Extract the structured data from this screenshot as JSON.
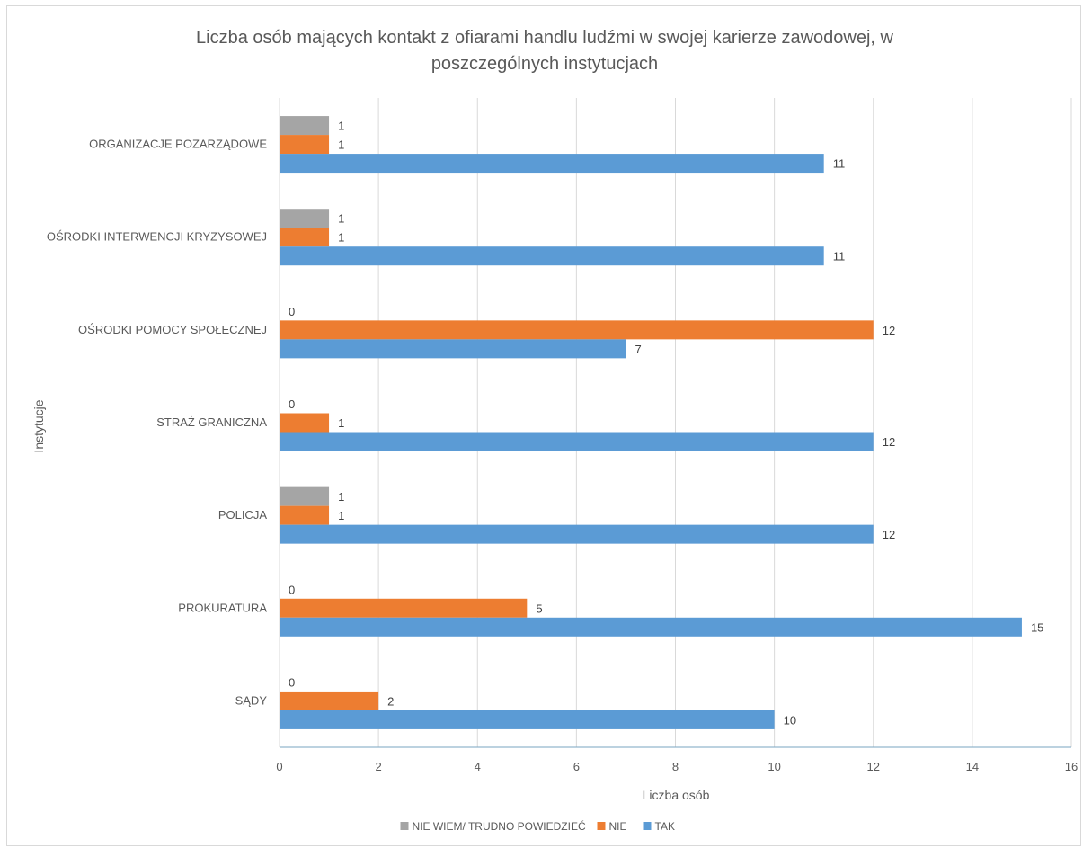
{
  "chart_data": {
    "type": "bar",
    "orientation": "horizontal",
    "title": "Liczba osób mających kontakt z ofiarami handlu ludźmi w swojej karierze zawodowej, w poszczególnych instytucjach",
    "title_lines": [
      "Liczba osób mających kontakt z ofiarami handlu ludźmi w swojej karierze zawodowej, w",
      "poszczególnych  instytucjach"
    ],
    "xlabel": "Liczba osób",
    "ylabel": "Instytucje",
    "xlim": [
      0,
      16
    ],
    "xticks": [
      0,
      2,
      4,
      6,
      8,
      10,
      12,
      14,
      16
    ],
    "grid": "vertical",
    "legend": "bottom",
    "categories": [
      "ORGANIZACJE POZARZĄDOWE",
      "OŚRODKI INTERWENCJI KRYZYSOWEJ",
      "OŚRODKI POMOCY SPOŁECZNEJ",
      "STRAŻ GRANICZNA",
      "POLICJA",
      "PROKURATURA",
      "SĄDY"
    ],
    "series": [
      {
        "name": "NIE WIEM/ TRUDNO POWIEDZIEĆ",
        "color": "#a5a5a5",
        "values": [
          1,
          1,
          0,
          0,
          1,
          0,
          0
        ]
      },
      {
        "name": "NIE",
        "color": "#ed7d31",
        "values": [
          1,
          1,
          12,
          1,
          1,
          5,
          2
        ]
      },
      {
        "name": "TAK",
        "color": "#5b9bd5",
        "values": [
          11,
          11,
          7,
          12,
          12,
          15,
          10
        ]
      }
    ]
  }
}
